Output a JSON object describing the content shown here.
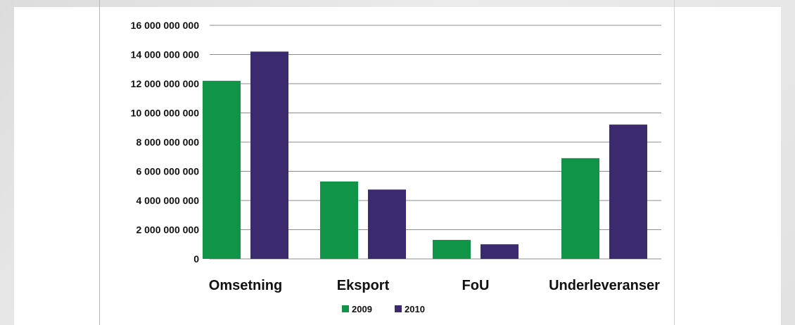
{
  "chart_data": {
    "type": "bar",
    "categories": [
      "Omsetning",
      "Eksport",
      "FoU",
      "Underleveranser"
    ],
    "series": [
      {
        "name": "2009",
        "color": "#109548",
        "values": [
          12200000000,
          5300000000,
          1300000000,
          6900000000
        ]
      },
      {
        "name": "2010",
        "color": "#3b2a6e",
        "values": [
          14200000000,
          4750000000,
          1000000000,
          9200000000
        ]
      }
    ],
    "y_ticks": [
      "0",
      "2 000 000 000",
      "4 000 000 000",
      "6 000 000 000",
      "8 000 000 000",
      "10 000 000 000",
      "12 000 000 000",
      "14 000 000 000",
      "16 000 000 000"
    ],
    "ylim": [
      0,
      16000000000
    ],
    "grid": true,
    "legend": "bottom",
    "title": "",
    "xlabel": "",
    "ylabel": ""
  }
}
